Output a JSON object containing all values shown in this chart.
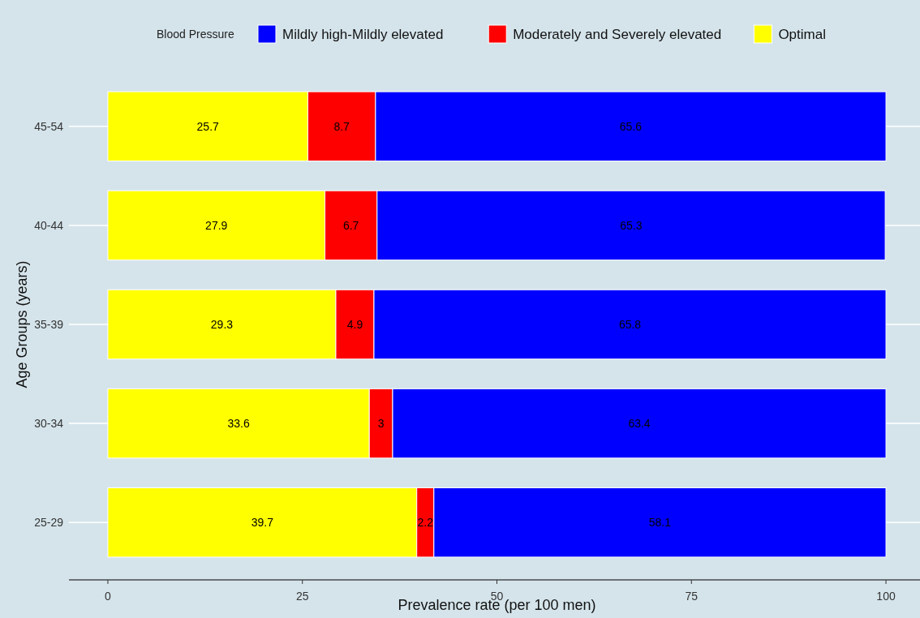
{
  "chart_data": {
    "type": "bar",
    "orientation": "horizontal",
    "stacked": true,
    "xlabel": "Prevalence rate (per 100 men)",
    "ylabel": "Age Groups (years)",
    "legend_title": "Blood Pressure",
    "legend": "top",
    "grid": "y",
    "data_labels": true,
    "categories": [
      "45-54",
      "40-44",
      "35-39",
      "30-34",
      "25-29"
    ],
    "xlim": [
      -5,
      105
    ],
    "xticks": [
      0,
      25,
      50,
      75,
      100
    ],
    "series": [
      {
        "name": "Optimal",
        "color": "#ffff00",
        "values": [
          25.7,
          27.9,
          29.3,
          33.6,
          39.7
        ]
      },
      {
        "name": "Moderately and Severely elevated",
        "color": "#ff0000",
        "values": [
          8.7,
          6.7,
          4.9,
          3,
          2.2
        ]
      },
      {
        "name": "Mildly high-Mildly elevated",
        "color": "#0000ff",
        "values": [
          65.6,
          65.3,
          65.8,
          63.4,
          58.1
        ]
      }
    ]
  }
}
